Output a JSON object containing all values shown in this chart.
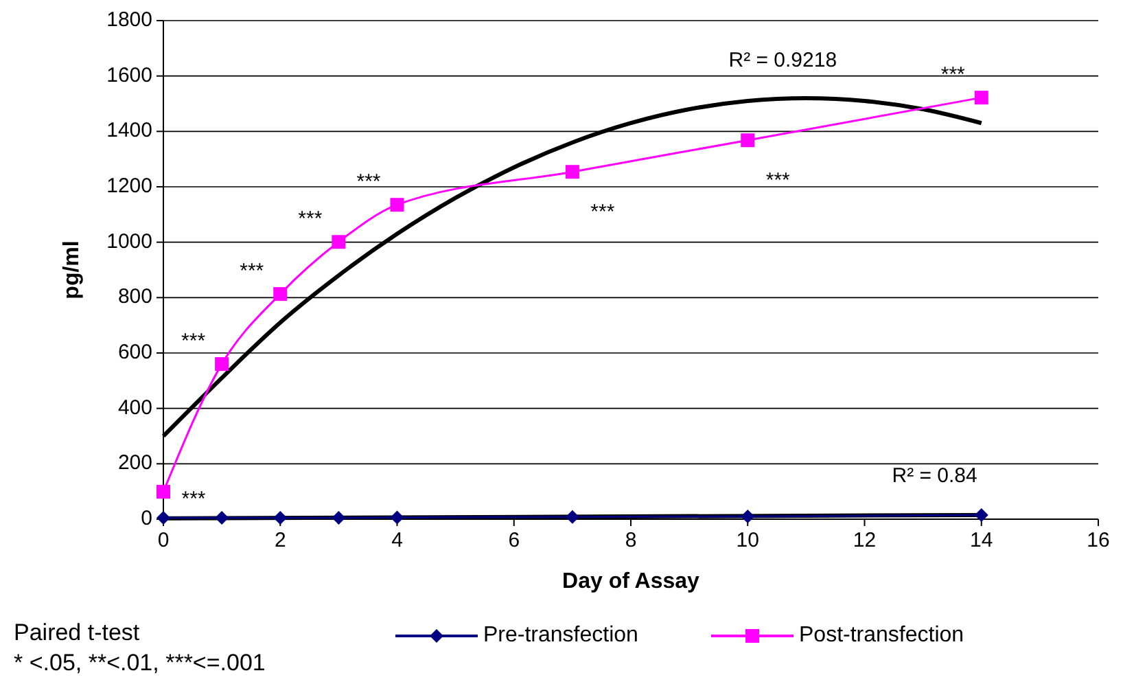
{
  "chart_data": {
    "type": "line",
    "xlabel": "Day of Assay",
    "ylabel": "pg/ml",
    "xlim": [
      0,
      16
    ],
    "xticks": [
      0,
      2,
      4,
      6,
      8,
      10,
      12,
      14,
      16
    ],
    "ylim": [
      0,
      1800
    ],
    "yticks": [
      0,
      200,
      400,
      600,
      800,
      1000,
      1200,
      1400,
      1600,
      1800
    ],
    "grid": "y",
    "legend": "bottom",
    "series": [
      {
        "color": "#000000",
        "marker": "none",
        "x": [
          0,
          1,
          2,
          3,
          4,
          5,
          6,
          7,
          8,
          9,
          10,
          11,
          12,
          13,
          14
        ],
        "values": [
          300,
          510,
          710,
          880,
          1030,
          1160,
          1270,
          1360,
          1430,
          1480,
          1510,
          1520,
          1510,
          1480,
          1430
        ]
      },
      {
        "color": "#000000",
        "marker": "none",
        "x": [
          0,
          14
        ],
        "values": [
          3,
          15
        ]
      },
      {
        "name": "Pre-transfection",
        "color": "#000080",
        "marker": "diamond",
        "x": [
          0,
          1,
          2,
          3,
          4,
          7,
          10,
          14
        ],
        "values": [
          5,
          5,
          5,
          5,
          6,
          8,
          10,
          15
        ]
      },
      {
        "name": "Post-transfection",
        "color": "#ff00ff",
        "marker": "square",
        "x": [
          0,
          1,
          2,
          3,
          4,
          7,
          10,
          14
        ],
        "values": [
          99,
          560,
          813,
          1001,
          1135,
          1254,
          1368,
          1522
        ]
      }
    ],
    "annotations": [
      {
        "text": "***",
        "x": 0,
        "y": 99
      },
      {
        "text": "***",
        "x": 1,
        "y": 560
      },
      {
        "text": "***",
        "x": 2,
        "y": 813
      },
      {
        "text": "***",
        "x": 3,
        "y": 1001
      },
      {
        "text": "***",
        "x": 4,
        "y": 1135
      },
      {
        "text": "***",
        "x": 7,
        "y": 1254
      },
      {
        "text": "***",
        "x": 10,
        "y": 1368
      },
      {
        "text": "***",
        "x": 14,
        "y": 1522
      },
      {
        "text": "R² = 0.9218",
        "x": 10.6,
        "y": 1516
      },
      {
        "text": "R² = 0.84",
        "x": 13.2,
        "y": 14.3
      },
      "Paired t-test",
      "* <.05, **<.01, ***<=.001"
    ]
  }
}
